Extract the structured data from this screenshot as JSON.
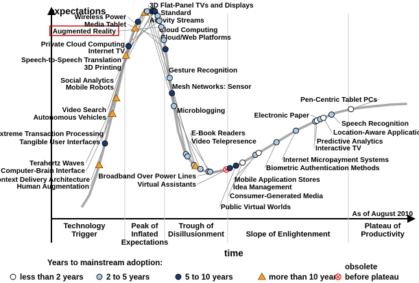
{
  "chart_data": {
    "type": "hype-cycle",
    "ylabel": "expectations",
    "xlabel": "time",
    "note": "As of August 2010",
    "phases": [
      [
        "Technology",
        "Trigger"
      ],
      [
        "Peak of",
        "Inflated",
        "Expectations"
      ],
      [
        "Trough of",
        "Disillusionment"
      ],
      [
        "Slope of Enlightenment"
      ],
      [
        "Plateau of",
        "Productivity"
      ]
    ],
    "legend": {
      "title": "Years to mainstream adoption:",
      "items": [
        {
          "key": "lt2",
          "label": "less than 2 years",
          "color": "#ffffff"
        },
        {
          "key": "2to5",
          "label": "2 to 5 years",
          "color": "#a9cce8"
        },
        {
          "key": "5to10",
          "label": "5 to 10 years",
          "color": "#173a73"
        },
        {
          "key": "gt10",
          "label": "more than 10 years",
          "color": "#f0a030"
        },
        {
          "key": "obs",
          "label": [
            "obsolete",
            "before plateau"
          ],
          "color": "#e02020"
        }
      ]
    },
    "highlight": "Augmented Reality",
    "technologies": [
      {
        "name": "Human Augmentation",
        "position": 0.052,
        "adoption": "gt10"
      },
      {
        "name": "Context Delivery Architecture",
        "position": 0.07,
        "adoption": "5to10"
      },
      {
        "name": "Computer-Brain Interface",
        "position": 0.093,
        "adoption": "gt10"
      },
      {
        "name": "Terahertz Waves",
        "position": 0.105,
        "adoption": "gt10"
      },
      {
        "name": "Tangible User Interfaces",
        "position": 0.135,
        "adoption": "gt10"
      },
      {
        "name": "Extreme Transaction Processing",
        "position": 0.143,
        "adoption": "5to10"
      },
      {
        "name": "Autonomous Vehicles",
        "position": 0.163,
        "adoption": "gt10"
      },
      {
        "name": "Video Search",
        "position": 0.172,
        "adoption": "5to10"
      },
      {
        "name": "Mobile Robots",
        "position": 0.193,
        "adoption": "gt10"
      },
      {
        "name": "Social Analytics",
        "position": 0.2,
        "adoption": "2to5"
      },
      {
        "name": "3D Printing",
        "position": 0.218,
        "adoption": "5to10"
      },
      {
        "name": "Speech-to-Speech Translation",
        "position": 0.224,
        "adoption": "5to10"
      },
      {
        "name": "Internet TV",
        "position": 0.233,
        "adoption": "2to5"
      },
      {
        "name": "Private Cloud Computing",
        "position": 0.238,
        "adoption": "2to5"
      },
      {
        "name": "Augmented Reality",
        "position": 0.244,
        "adoption": "2to5"
      },
      {
        "name": "Media Tablet",
        "position": 0.252,
        "adoption": "2to5"
      },
      {
        "name": "Wireless Power",
        "position": 0.257,
        "adoption": "5to10"
      },
      {
        "name": "3D Flat-Panel TVs and Displays",
        "position": 0.27,
        "adoption": "2to5"
      },
      {
        "name": "4G Standard",
        "position": 0.277,
        "adoption": "5to10"
      },
      {
        "name": "Activity Streams",
        "position": 0.283,
        "adoption": "2to5"
      },
      {
        "name": "Cloud Computing",
        "position": 0.32,
        "adoption": "2to5"
      },
      {
        "name": "Cloud/Web Platforms",
        "position": 0.325,
        "adoption": "2to5"
      },
      {
        "name": "Gesture Recognition",
        "position": 0.345,
        "adoption": "2to5"
      },
      {
        "name": "Mesh Networks: Sensor",
        "position": 0.35,
        "adoption": "gt10"
      },
      {
        "name": "Microblogging",
        "position": 0.365,
        "adoption": "2to5"
      },
      {
        "name": "E-Book Readers",
        "position": 0.39,
        "adoption": "2to5"
      },
      {
        "name": "Video Telepresence",
        "position": 0.395,
        "adoption": "2to5"
      },
      {
        "name": "Broadband Over Power Lines",
        "position": 0.445,
        "adoption": "obs"
      },
      {
        "name": "Virtual Assistants",
        "position": 0.456,
        "adoption": "5to10"
      },
      {
        "name": "Public Virtual Worlds",
        "position": 0.475,
        "adoption": "5to10"
      },
      {
        "name": "Consumer-Generated Media",
        "position": 0.495,
        "adoption": "lt2"
      },
      {
        "name": "Idea Management",
        "position": 0.535,
        "adoption": "2to5"
      },
      {
        "name": "Mobile Application Stores",
        "position": 0.545,
        "adoption": "lt2"
      },
      {
        "name": "Biometric Authentication Methods",
        "position": 0.6,
        "adoption": "2to5"
      },
      {
        "name": "Internet Micropayment Systems",
        "position": 0.66,
        "adoption": "2to5"
      },
      {
        "name": "Interactive TV",
        "position": 0.72,
        "adoption": "2to5"
      },
      {
        "name": "Predictive Analytics",
        "position": 0.725,
        "adoption": "lt2"
      },
      {
        "name": "Electronic Paper",
        "position": 0.735,
        "adoption": "2to5"
      },
      {
        "name": "Location-Aware Applications",
        "position": 0.745,
        "adoption": "lt2"
      },
      {
        "name": "Speech Recognition",
        "position": 0.77,
        "adoption": "2to5"
      },
      {
        "name": "Pen-Centric Tablet PCs",
        "position": 0.83,
        "adoption": "lt2"
      }
    ]
  }
}
